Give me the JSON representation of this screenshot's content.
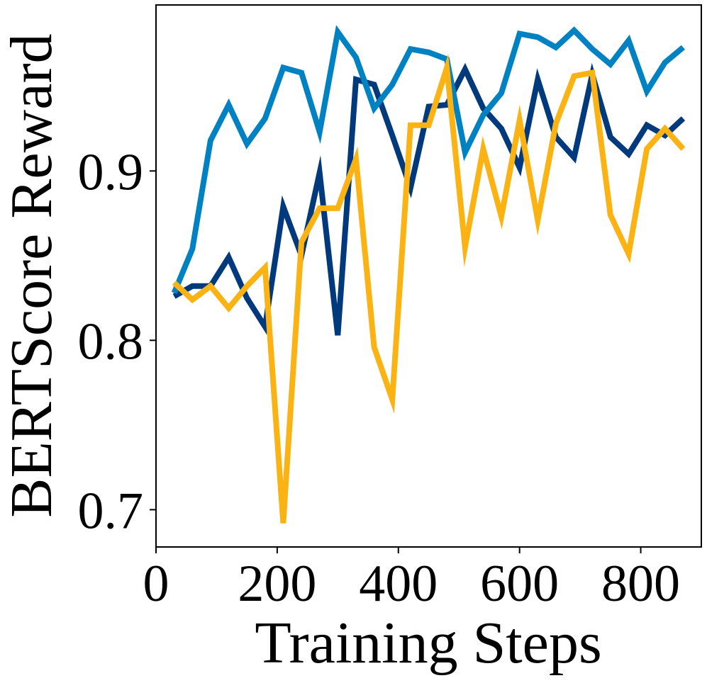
{
  "chart_data": {
    "type": "line",
    "title": "",
    "xlabel": "Training Steps",
    "ylabel": "BERTScore Reward",
    "xlim": [
      0,
      900
    ],
    "ylim": [
      0.678,
      0.998
    ],
    "xticks": [
      0,
      200,
      400,
      600,
      800
    ],
    "xtick_labels": [
      "0",
      "200",
      "400",
      "600",
      "800"
    ],
    "yticks": [
      0.7,
      0.8,
      0.9
    ],
    "ytick_labels": [
      "0.7",
      "0.8",
      "0.9"
    ],
    "grid": false,
    "legend": "none",
    "x": [
      30,
      60,
      90,
      120,
      150,
      180,
      210,
      240,
      270,
      300,
      330,
      360,
      390,
      420,
      450,
      480,
      510,
      540,
      570,
      600,
      630,
      660,
      690,
      720,
      750,
      780,
      810,
      840,
      870
    ],
    "series": [
      {
        "color": "#003a7d",
        "values": [
          0.826,
          0.832,
          0.832,
          0.849,
          0.825,
          0.808,
          0.879,
          0.85,
          0.899,
          0.803,
          0.954,
          0.951,
          0.921,
          0.89,
          0.938,
          0.939,
          0.96,
          0.937,
          0.925,
          0.902,
          0.954,
          0.92,
          0.908,
          0.957,
          0.92,
          0.91,
          0.927,
          0.921,
          0.931
        ]
      },
      {
        "color": "#0081c2",
        "values": [
          0.828,
          0.854,
          0.918,
          0.939,
          0.916,
          0.931,
          0.961,
          0.958,
          0.923,
          0.982,
          0.967,
          0.937,
          0.951,
          0.972,
          0.97,
          0.966,
          0.911,
          0.933,
          0.946,
          0.981,
          0.979,
          0.973,
          0.983,
          0.972,
          0.963,
          0.977,
          0.947,
          0.964,
          0.973
        ]
      },
      {
        "color": "#fbb314",
        "values": [
          0.834,
          0.824,
          0.832,
          0.819,
          0.832,
          0.843,
          0.692,
          0.858,
          0.878,
          0.878,
          0.907,
          0.796,
          0.765,
          0.927,
          0.927,
          0.961,
          0.855,
          0.913,
          0.873,
          0.93,
          0.871,
          0.928,
          0.956,
          0.958,
          0.874,
          0.851,
          0.913,
          0.925,
          0.913
        ]
      }
    ]
  }
}
